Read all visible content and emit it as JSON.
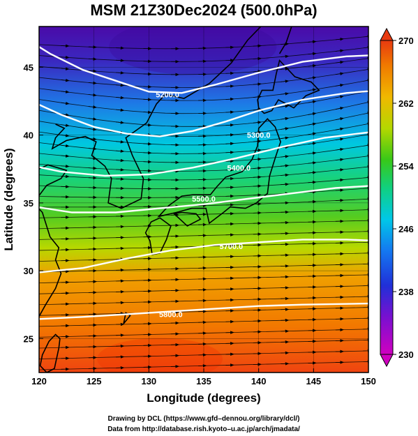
{
  "chart_data": {
    "type": "heatmap",
    "title": "MSM 21Z30Dec2024 (500.0hPa)",
    "xlabel": "Longitude (degrees)",
    "ylabel": "Latitude  (degrees)",
    "xlim": [
      120,
      150
    ],
    "ylim": [
      22.5,
      48
    ],
    "x_ticks": [
      120,
      125,
      130,
      135,
      140,
      145,
      150
    ],
    "y_ticks": [
      25,
      30,
      35,
      40,
      45
    ],
    "colorbar": {
      "range": [
        230,
        270
      ],
      "ticks": [
        230,
        238,
        246,
        254,
        262,
        270
      ],
      "extend": "both"
    },
    "field_samples": [
      {
        "lat": 23,
        "value": 266
      },
      {
        "lat": 27,
        "value": 264
      },
      {
        "lat": 30,
        "value": 261
      },
      {
        "lat": 33,
        "value": 255
      },
      {
        "lat": 36,
        "value": 250
      },
      {
        "lat": 39,
        "value": 246
      },
      {
        "lat": 42,
        "value": 241
      },
      {
        "lat": 45,
        "value": 237
      },
      {
        "lat": 47.5,
        "value": 234
      }
    ],
    "contours": [
      {
        "label": "5200.0",
        "lon": 131.7,
        "lat": 43.0
      },
      {
        "label": "5300.0",
        "lon": 140.0,
        "lat": 40.0
      },
      {
        "label": "5400.0",
        "lon": 138.2,
        "lat": 37.6
      },
      {
        "label": "5500.0",
        "lon": 135.0,
        "lat": 35.3
      },
      {
        "label": "5700.0",
        "lon": 137.5,
        "lat": 31.8
      },
      {
        "label": "5800.0",
        "lon": 132.0,
        "lat": 26.8
      }
    ],
    "streamlines": true,
    "coastlines": true,
    "grid": true
  },
  "footer": {
    "line1": "Drawing by DCL (https://www.gfd–dennou.org/library/dcl/)",
    "line2": "Data from http://database.rish.kyoto–u.ac.jp/arch/jmadata/"
  }
}
